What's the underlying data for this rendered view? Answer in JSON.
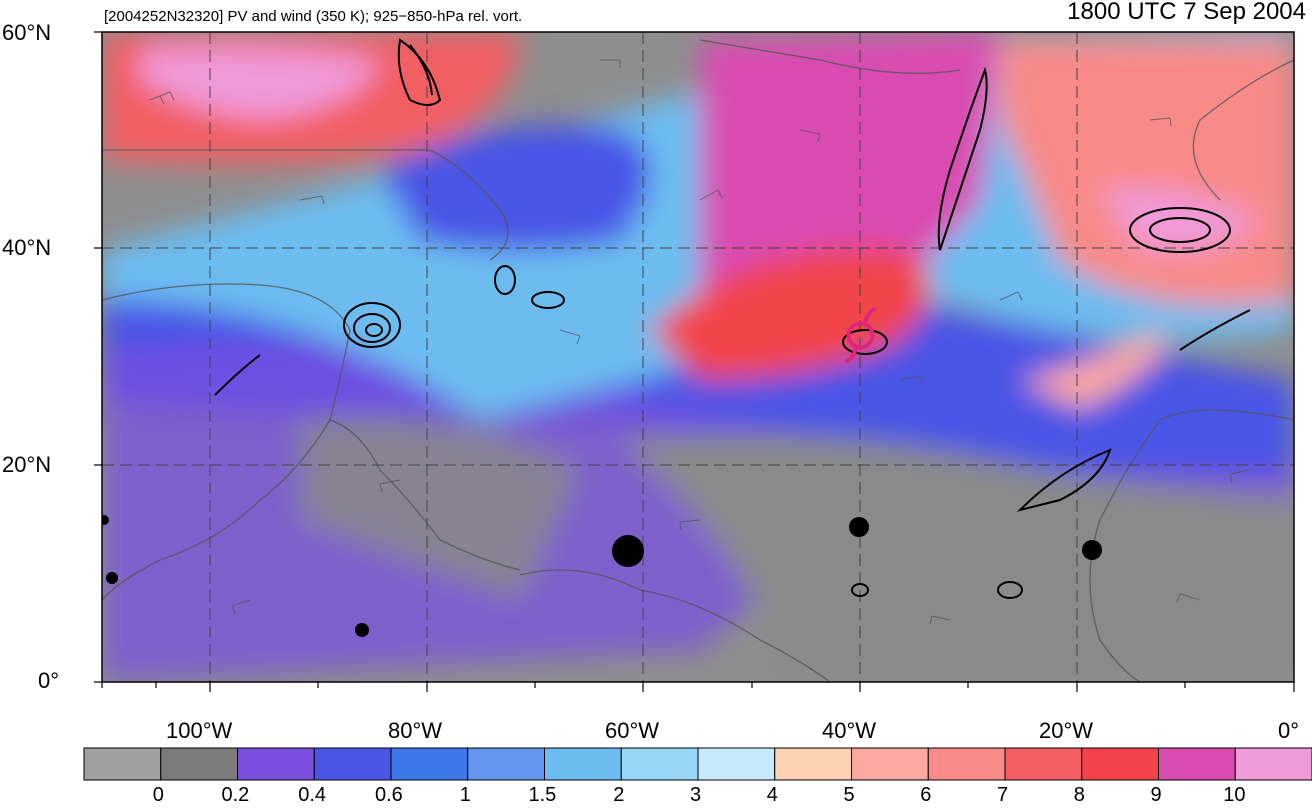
{
  "header": {
    "subtitle": "[2004252N32320] PV and wind (350 K); 925−850-hPa rel. vort.",
    "title": "1800 UTC 7 Sep 2004"
  },
  "axes": {
    "lat_labels": [
      "60°N",
      "40°N",
      "20°N",
      "0°"
    ],
    "lon_labels": [
      "100°W",
      "80°W",
      "60°W",
      "40°W",
      "20°W",
      "0°"
    ],
    "lon_range": [
      -110,
      0
    ],
    "lat_range": [
      0,
      60
    ]
  },
  "storm_marker": {
    "symbol": "tropical-cyclone-icon",
    "lon": -40,
    "lat": 32,
    "color": "#e0267a"
  },
  "colorbar": {
    "labels": [
      "0",
      "0.2",
      "0.4",
      "0.6",
      "1",
      "1.5",
      "2",
      "3",
      "4",
      "5",
      "6",
      "7",
      "8",
      "9",
      "10"
    ],
    "colors": [
      "#a0a0a0",
      "#7b7b7b",
      "#7a4fe0",
      "#4a55e6",
      "#3c78e8",
      "#6495ee",
      "#6cbcf0",
      "#97d7f5",
      "#c6eafa",
      "#fdd1b4",
      "#fba8a0",
      "#f88a88",
      "#f25e63",
      "#f2444a",
      "#d94bb0",
      "#f09ad8"
    ]
  }
}
